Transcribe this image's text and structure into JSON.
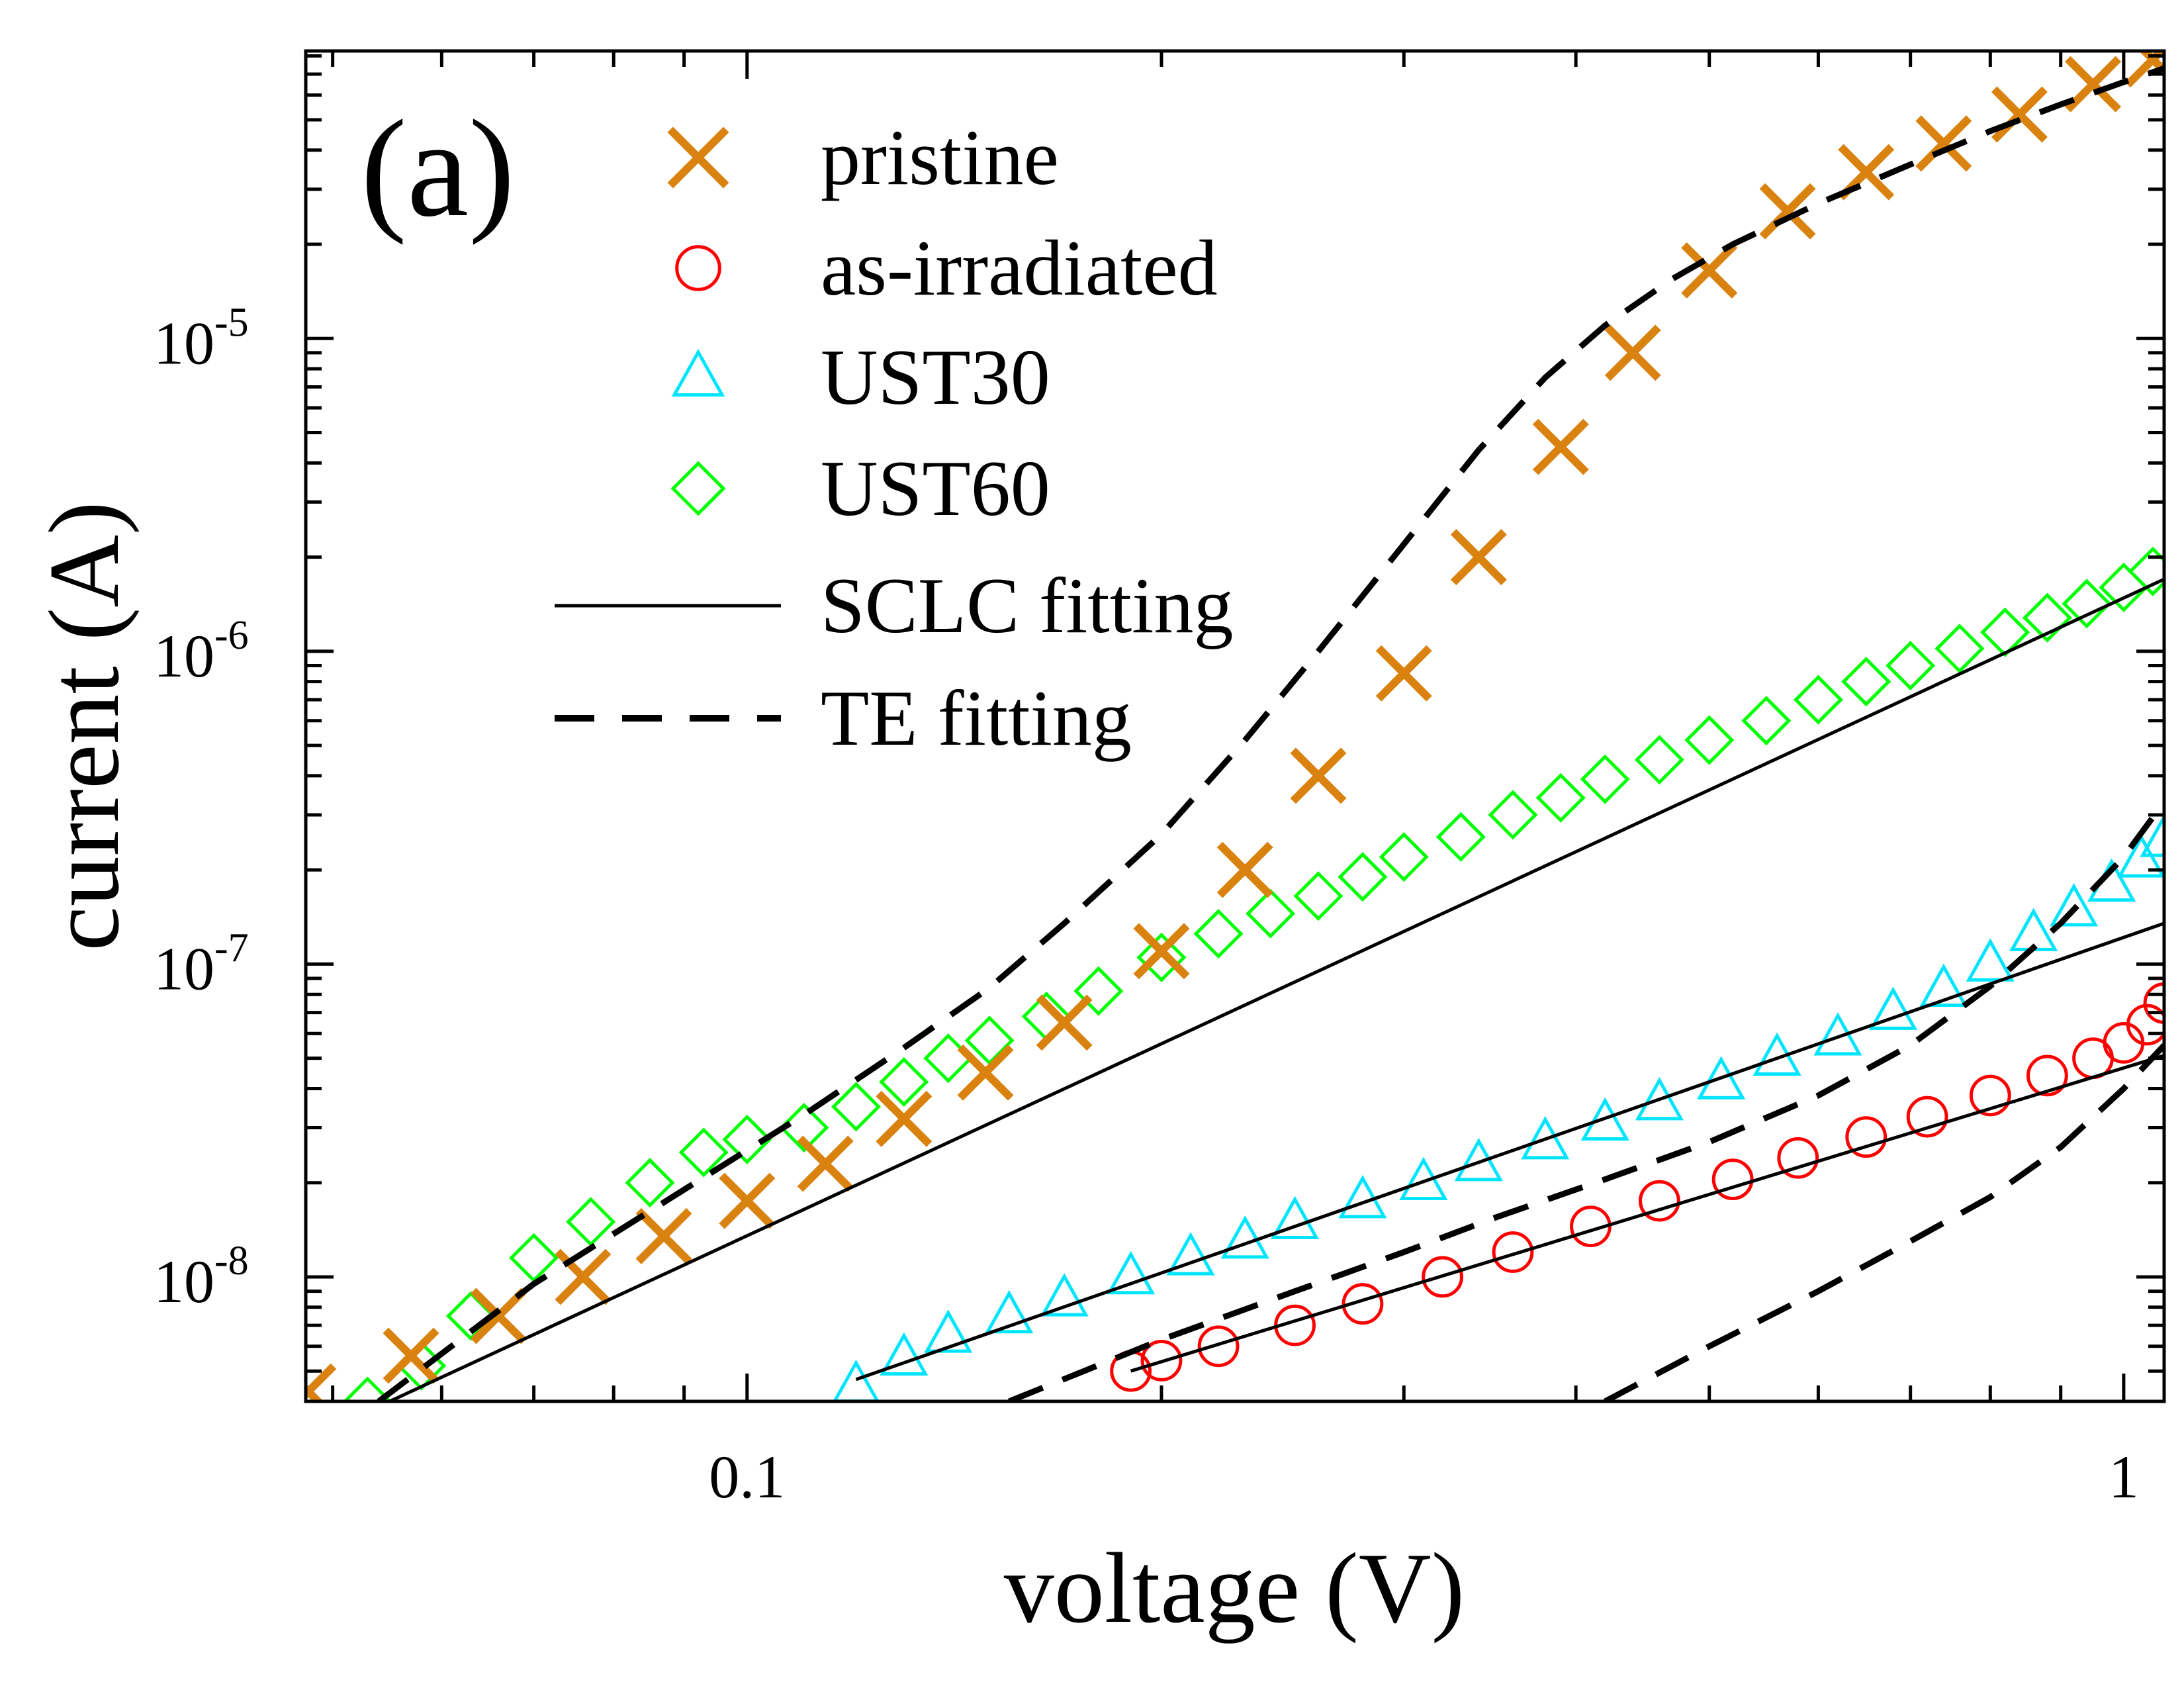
{
  "chart_data": {
    "type": "scatter",
    "panel_label": "(a)",
    "xlabel": "voltage (V)",
    "ylabel": "current (A)",
    "xscale": "log",
    "yscale": "log",
    "xlim": [
      0.0478,
      1.07
    ],
    "ylim": [
      4e-09,
      8.3e-05
    ],
    "x_ticks": [
      {
        "value": 0.1,
        "label": "0.1"
      },
      {
        "value": 1,
        "label": "1"
      }
    ],
    "y_ticks": [
      {
        "value": 1e-08,
        "base": "10",
        "exp": "-8"
      },
      {
        "value": 1e-07,
        "base": "10",
        "exp": "-7"
      },
      {
        "value": 1e-06,
        "base": "10",
        "exp": "-6"
      },
      {
        "value": 1e-05,
        "base": "10",
        "exp": "-5"
      }
    ],
    "legend_position": "top-left",
    "series": [
      {
        "name": "pristine",
        "marker": "x",
        "color": "#d9820f",
        "x": [
          0.048,
          0.057,
          0.066,
          0.076,
          0.087,
          0.1,
          0.114,
          0.13,
          0.149,
          0.17,
          0.2,
          0.23,
          0.26,
          0.3,
          0.34,
          0.39,
          0.44,
          0.5,
          0.57,
          0.65,
          0.74,
          0.84,
          0.95,
          1.05
        ],
        "y": [
          4.3e-09,
          5.6e-09,
          7.5e-09,
          1e-08,
          1.35e-08,
          1.75e-08,
          2.3e-08,
          3.2e-08,
          4.5e-08,
          6.5e-08,
          1.1e-07,
          2e-07,
          4e-07,
          8.5e-07,
          2e-06,
          4.5e-06,
          9e-06,
          1.65e-05,
          2.55e-05,
          3.4e-05,
          4.2e-05,
          5.2e-05,
          6.5e-05,
          7.8e-05
        ]
      },
      {
        "name": "as-irradiated",
        "marker": "circle",
        "color": "#ff0000",
        "x": [
          0.19,
          0.2,
          0.22,
          0.25,
          0.28,
          0.32,
          0.36,
          0.41,
          0.46,
          0.52,
          0.58,
          0.65,
          0.72,
          0.8,
          0.88,
          0.95,
          1.0,
          1.04,
          1.07
        ],
        "y": [
          5e-09,
          5.4e-09,
          6e-09,
          7e-09,
          8.2e-09,
          1e-08,
          1.2e-08,
          1.45e-08,
          1.75e-08,
          2.05e-08,
          2.4e-08,
          2.8e-08,
          3.25e-08,
          3.8e-08,
          4.4e-08,
          5e-08,
          5.6e-08,
          6.4e-08,
          7.5e-08
        ]
      },
      {
        "name": "UST30",
        "marker": "triangle",
        "color": "#00e5ff",
        "x": [
          0.12,
          0.13,
          0.14,
          0.155,
          0.17,
          0.19,
          0.21,
          0.23,
          0.25,
          0.28,
          0.31,
          0.34,
          0.38,
          0.42,
          0.46,
          0.51,
          0.56,
          0.62,
          0.68,
          0.74,
          0.8,
          0.86,
          0.92,
          0.98,
          1.03,
          1.07
        ],
        "y": [
          4.5e-09,
          5.5e-09,
          6.5e-09,
          7.5e-09,
          8.5e-09,
          1e-08,
          1.15e-08,
          1.3e-08,
          1.5e-08,
          1.75e-08,
          2e-08,
          2.3e-08,
          2.7e-08,
          3.1e-08,
          3.6e-08,
          4.2e-08,
          5e-08,
          5.8e-08,
          7e-08,
          8.3e-08,
          1e-07,
          1.25e-07,
          1.5e-07,
          1.8e-07,
          2.15e-07,
          2.5e-07
        ]
      },
      {
        "name": "UST60",
        "marker": "diamond",
        "color": "#00ff00",
        "x": [
          0.053,
          0.058,
          0.063,
          0.07,
          0.077,
          0.085,
          0.093,
          0.1,
          0.11,
          0.12,
          0.13,
          0.14,
          0.15,
          0.165,
          0.18,
          0.2,
          0.22,
          0.24,
          0.26,
          0.28,
          0.3,
          0.33,
          0.36,
          0.39,
          0.42,
          0.46,
          0.5,
          0.55,
          0.6,
          0.65,
          0.7,
          0.76,
          0.82,
          0.88,
          0.94,
          1.0,
          1.05
        ],
        "y": [
          4e-09,
          5.2e-09,
          7.5e-09,
          1.15e-08,
          1.5e-08,
          2e-08,
          2.5e-08,
          2.75e-08,
          3e-08,
          3.5e-08,
          4.2e-08,
          5e-08,
          5.7e-08,
          6.8e-08,
          8.2e-08,
          1.05e-07,
          1.25e-07,
          1.45e-07,
          1.65e-07,
          1.9e-07,
          2.2e-07,
          2.55e-07,
          3e-07,
          3.4e-07,
          3.9e-07,
          4.5e-07,
          5.2e-07,
          6e-07,
          7e-07,
          8e-07,
          9e-07,
          1.02e-06,
          1.15e-06,
          1.28e-06,
          1.42e-06,
          1.6e-06,
          1.8e-06
        ]
      }
    ],
    "fit_lines": [
      {
        "name": "SCLC fitting",
        "style": "solid",
        "for": "UST60",
        "x": [
          0.055,
          1.07
        ],
        "y": [
          4e-09,
          1.7e-06
        ]
      },
      {
        "name": "SCLC fitting",
        "style": "solid",
        "for": "UST30",
        "x": [
          0.12,
          1.07
        ],
        "y": [
          4.7e-09,
          1.35e-07
        ]
      },
      {
        "name": "SCLC fitting",
        "style": "solid",
        "for": "as-irradiated",
        "x": [
          0.19,
          1.07
        ],
        "y": [
          5e-09,
          5.1e-08
        ]
      },
      {
        "name": "TE fitting",
        "style": "dashed",
        "for": "pristine",
        "x": [
          0.054,
          0.07,
          0.09,
          0.11,
          0.13,
          0.15,
          0.17,
          0.2,
          0.23,
          0.26,
          0.3,
          0.34,
          0.38,
          0.42,
          0.47,
          0.52,
          0.6,
          0.7,
          0.8,
          0.9,
          1.0,
          1.07
        ],
        "y": [
          4e-09,
          9.5e-09,
          1.9e-08,
          3.3e-08,
          5.4e-08,
          8.4e-08,
          1.35e-07,
          2.6e-07,
          5.2e-07,
          1e-06,
          2.2e-06,
          4.4e-06,
          7.5e-06,
          1.1e-05,
          1.55e-05,
          2e-05,
          2.7e-05,
          3.6e-05,
          4.6e-05,
          5.6e-05,
          6.6e-05,
          7.3e-05
        ]
      },
      {
        "name": "TE fitting",
        "style": "dashed",
        "for": "UST30",
        "x": [
          0.155,
          0.2,
          0.25,
          0.3,
          0.35,
          0.42,
          0.5,
          0.6,
          0.7,
          0.8,
          0.9,
          1.0,
          1.07
        ],
        "y": [
          4e-09,
          6.3e-09,
          9e-09,
          1.2e-08,
          1.55e-08,
          2.05e-08,
          2.7e-08,
          3.8e-08,
          5.5e-08,
          8.5e-08,
          1.35e-07,
          2.2e-07,
          3.3e-07
        ]
      },
      {
        "name": "TE fitting",
        "style": "dashed",
        "for": "as-irradiated",
        "x": [
          0.42,
          0.5,
          0.6,
          0.7,
          0.8,
          0.9,
          1.0,
          1.07
        ],
        "y": [
          4e-09,
          6e-09,
          9e-09,
          1.3e-08,
          1.8e-08,
          2.6e-08,
          4e-08,
          5.5e-08
        ]
      }
    ],
    "legend": [
      {
        "label": "pristine",
        "kind": "x",
        "color": "#d9820f"
      },
      {
        "label": "as-irradiated",
        "kind": "circle",
        "color": "#ff0000"
      },
      {
        "label": "UST30",
        "kind": "triangle",
        "color": "#00e5ff"
      },
      {
        "label": "UST60",
        "kind": "diamond",
        "color": "#00ff00"
      },
      {
        "label": "SCLC fitting",
        "kind": "solid",
        "color": "#000000"
      },
      {
        "label": "TE fitting",
        "kind": "dashed",
        "color": "#000000"
      }
    ]
  }
}
